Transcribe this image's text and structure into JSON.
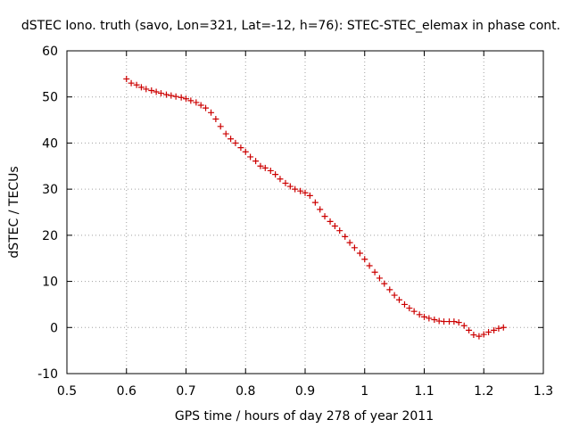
{
  "chart_data": {
    "type": "scatter",
    "title": "dSTEC Iono. truth (savo, Lon=321, Lat=-12, h=76): STEC-STEC_elemax in phase cont.",
    "xlabel": "GPS time / hours of day 278 of year 2011",
    "ylabel": "dSTEC  / TECUs",
    "xlim": [
      0.5,
      1.3
    ],
    "ylim": [
      -10,
      60
    ],
    "x_ticks": [
      0.5,
      0.6,
      0.7,
      0.8,
      0.9,
      1.0,
      1.1,
      1.2,
      1.3
    ],
    "x_tick_labels": [
      "0.5",
      "0.6",
      "0.7",
      "0.8",
      "0.9",
      "1",
      "1.1",
      "1.2",
      "1.3"
    ],
    "y_ticks": [
      -10,
      0,
      10,
      20,
      30,
      40,
      50,
      60
    ],
    "y_tick_labels": [
      "-10",
      "0",
      "10",
      "20",
      "30",
      "40",
      "50",
      "60"
    ],
    "grid": true,
    "marker": "plus",
    "color": "#cc0000",
    "points": [
      [
        0.6,
        53.9
      ],
      [
        0.608,
        53.0
      ],
      [
        0.617,
        52.6
      ],
      [
        0.625,
        52.1
      ],
      [
        0.633,
        51.7
      ],
      [
        0.642,
        51.4
      ],
      [
        0.65,
        51.1
      ],
      [
        0.658,
        50.8
      ],
      [
        0.667,
        50.5
      ],
      [
        0.675,
        50.3
      ],
      [
        0.683,
        50.1
      ],
      [
        0.692,
        49.9
      ],
      [
        0.7,
        49.6
      ],
      [
        0.708,
        49.2
      ],
      [
        0.717,
        48.8
      ],
      [
        0.725,
        48.2
      ],
      [
        0.733,
        47.6
      ],
      [
        0.742,
        46.6
      ],
      [
        0.75,
        45.2
      ],
      [
        0.758,
        43.6
      ],
      [
        0.767,
        42.0
      ],
      [
        0.775,
        40.9
      ],
      [
        0.783,
        40.0
      ],
      [
        0.792,
        39.0
      ],
      [
        0.8,
        38.1
      ],
      [
        0.808,
        37.0
      ],
      [
        0.817,
        36.1
      ],
      [
        0.825,
        35.0
      ],
      [
        0.833,
        34.6
      ],
      [
        0.842,
        34.0
      ],
      [
        0.85,
        33.2
      ],
      [
        0.858,
        32.2
      ],
      [
        0.867,
        31.3
      ],
      [
        0.875,
        30.6
      ],
      [
        0.883,
        30.0
      ],
      [
        0.892,
        29.6
      ],
      [
        0.9,
        29.2
      ],
      [
        0.908,
        28.6
      ],
      [
        0.917,
        27.1
      ],
      [
        0.925,
        25.6
      ],
      [
        0.933,
        24.1
      ],
      [
        0.942,
        23.0
      ],
      [
        0.95,
        22.0
      ],
      [
        0.958,
        21.0
      ],
      [
        0.967,
        19.7
      ],
      [
        0.975,
        18.4
      ],
      [
        0.983,
        17.3
      ],
      [
        0.992,
        16.1
      ],
      [
        1.0,
        14.8
      ],
      [
        1.008,
        13.4
      ],
      [
        1.017,
        12.0
      ],
      [
        1.025,
        10.7
      ],
      [
        1.033,
        9.5
      ],
      [
        1.042,
        8.2
      ],
      [
        1.05,
        7.0
      ],
      [
        1.058,
        6.0
      ],
      [
        1.067,
        5.0
      ],
      [
        1.075,
        4.2
      ],
      [
        1.083,
        3.5
      ],
      [
        1.092,
        2.8
      ],
      [
        1.1,
        2.3
      ],
      [
        1.108,
        2.0
      ],
      [
        1.117,
        1.7
      ],
      [
        1.125,
        1.4
      ],
      [
        1.133,
        1.3
      ],
      [
        1.142,
        1.3
      ],
      [
        1.15,
        1.3
      ],
      [
        1.158,
        1.1
      ],
      [
        1.167,
        0.4
      ],
      [
        1.175,
        -0.6
      ],
      [
        1.183,
        -1.6
      ],
      [
        1.192,
        -1.9
      ],
      [
        1.2,
        -1.5
      ],
      [
        1.208,
        -1.0
      ],
      [
        1.217,
        -0.6
      ],
      [
        1.225,
        -0.2
      ],
      [
        1.233,
        0.0
      ]
    ]
  }
}
